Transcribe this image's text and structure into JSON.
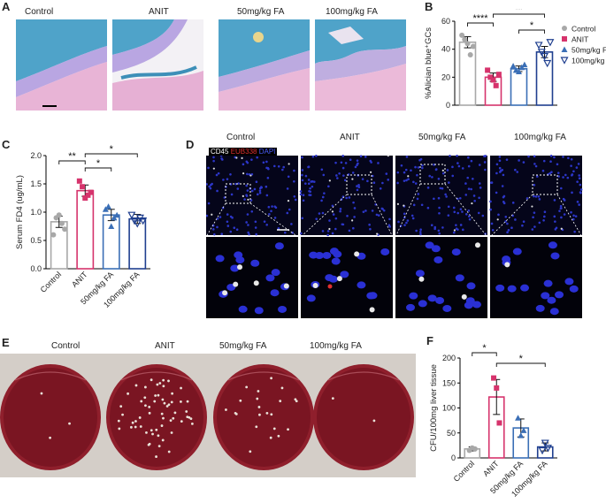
{
  "panels": {
    "A": "A",
    "B": "B",
    "C": "C",
    "D": "D",
    "E": "E",
    "F": "F"
  },
  "A": {
    "titles": [
      "Control",
      "ANIT",
      "50mg/kg FA",
      "100mg/kg FA"
    ]
  },
  "D": {
    "titles": [
      "Control",
      "ANIT",
      "50mg/kg FA",
      "100mg/kg FA"
    ],
    "stain_cd45": "CD45",
    "stain_eub": "EUB338",
    "stain_dapi": "DAPI"
  },
  "E": {
    "titles": [
      "Control",
      "ANIT",
      "50mg/kg FA",
      "100mg/kg FA"
    ]
  },
  "colors": {
    "Control": "#a8a8a8",
    "ANIT": "#d6336c",
    "50mg/kg FA": "#3b6fb6",
    "100mg/kg FA": "#1f3f8f"
  },
  "chart_data": [
    {
      "panel": "B",
      "type": "bar",
      "ylabel": "%Alician blue⁺GCs",
      "ylim": [
        0,
        60
      ],
      "yticks": [
        0,
        20,
        40,
        60
      ],
      "categories": [
        "Control",
        "ANIT",
        "50mg/kg FA",
        "100mg/kg FA"
      ],
      "values": [
        45,
        20,
        26,
        38
      ],
      "errors": [
        4,
        3,
        2,
        4
      ],
      "points": [
        [
          50,
          47,
          44,
          36,
          42
        ],
        [
          25,
          20,
          18,
          14,
          22
        ],
        [
          28,
          25,
          24,
          27,
          29
        ],
        [
          43,
          38,
          35,
          30,
          45
        ]
      ],
      "legend": [
        "Control",
        "ANIT",
        "50mg/kg FA",
        "100mg/kg FA"
      ],
      "legend_position": "right",
      "significance": [
        {
          "from": 0,
          "to": 1,
          "text": "****"
        },
        {
          "from": 1,
          "to": 3,
          "text": "**"
        },
        {
          "from": 2,
          "to": 3,
          "text": "*"
        }
      ]
    },
    {
      "panel": "C",
      "type": "bar",
      "ylabel": "Serum FD4 (ug/mL)",
      "ylim": [
        0,
        2.0
      ],
      "yticks": [
        "0.0",
        "0.5",
        "1.0",
        "1.5",
        "2.0"
      ],
      "categories": [
        "Control",
        "ANIT",
        "50mg/kg FA",
        "100mg/kg FA"
      ],
      "values": [
        0.83,
        1.38,
        0.95,
        0.88
      ],
      "errors": [
        0.1,
        0.1,
        0.1,
        0.08
      ],
      "points": [
        [
          0.6,
          0.9,
          0.95,
          0.8,
          0.7
        ],
        [
          1.55,
          1.45,
          1.25,
          1.3,
          1.35
        ],
        [
          1.05,
          1.1,
          0.75,
          0.9,
          0.95
        ],
        [
          0.95,
          0.85,
          0.8,
          0.9,
          0.85
        ]
      ],
      "significance": [
        {
          "from": 0,
          "to": 1,
          "text": "**"
        },
        {
          "from": 1,
          "to": 2,
          "text": "*"
        },
        {
          "from": 1,
          "to": 3,
          "text": "*"
        }
      ]
    },
    {
      "panel": "F",
      "type": "bar",
      "ylabel": "CFU/100mg liver tissue",
      "ylim": [
        0,
        200
      ],
      "yticks": [
        0,
        50,
        100,
        150,
        200
      ],
      "categories": [
        "Control",
        "ANIT",
        "50mg/kg FA",
        "100mg/kg FA"
      ],
      "values": [
        18,
        122,
        60,
        22
      ],
      "errors": [
        4,
        35,
        18,
        8
      ],
      "points": [
        [
          15,
          20,
          18
        ],
        [
          160,
          140,
          70
        ],
        [
          80,
          45,
          55
        ],
        [
          15,
          30,
          20
        ]
      ],
      "significance": [
        {
          "from": 0,
          "to": 1,
          "text": "*"
        },
        {
          "from": 1,
          "to": 3,
          "text": "*"
        }
      ]
    }
  ]
}
